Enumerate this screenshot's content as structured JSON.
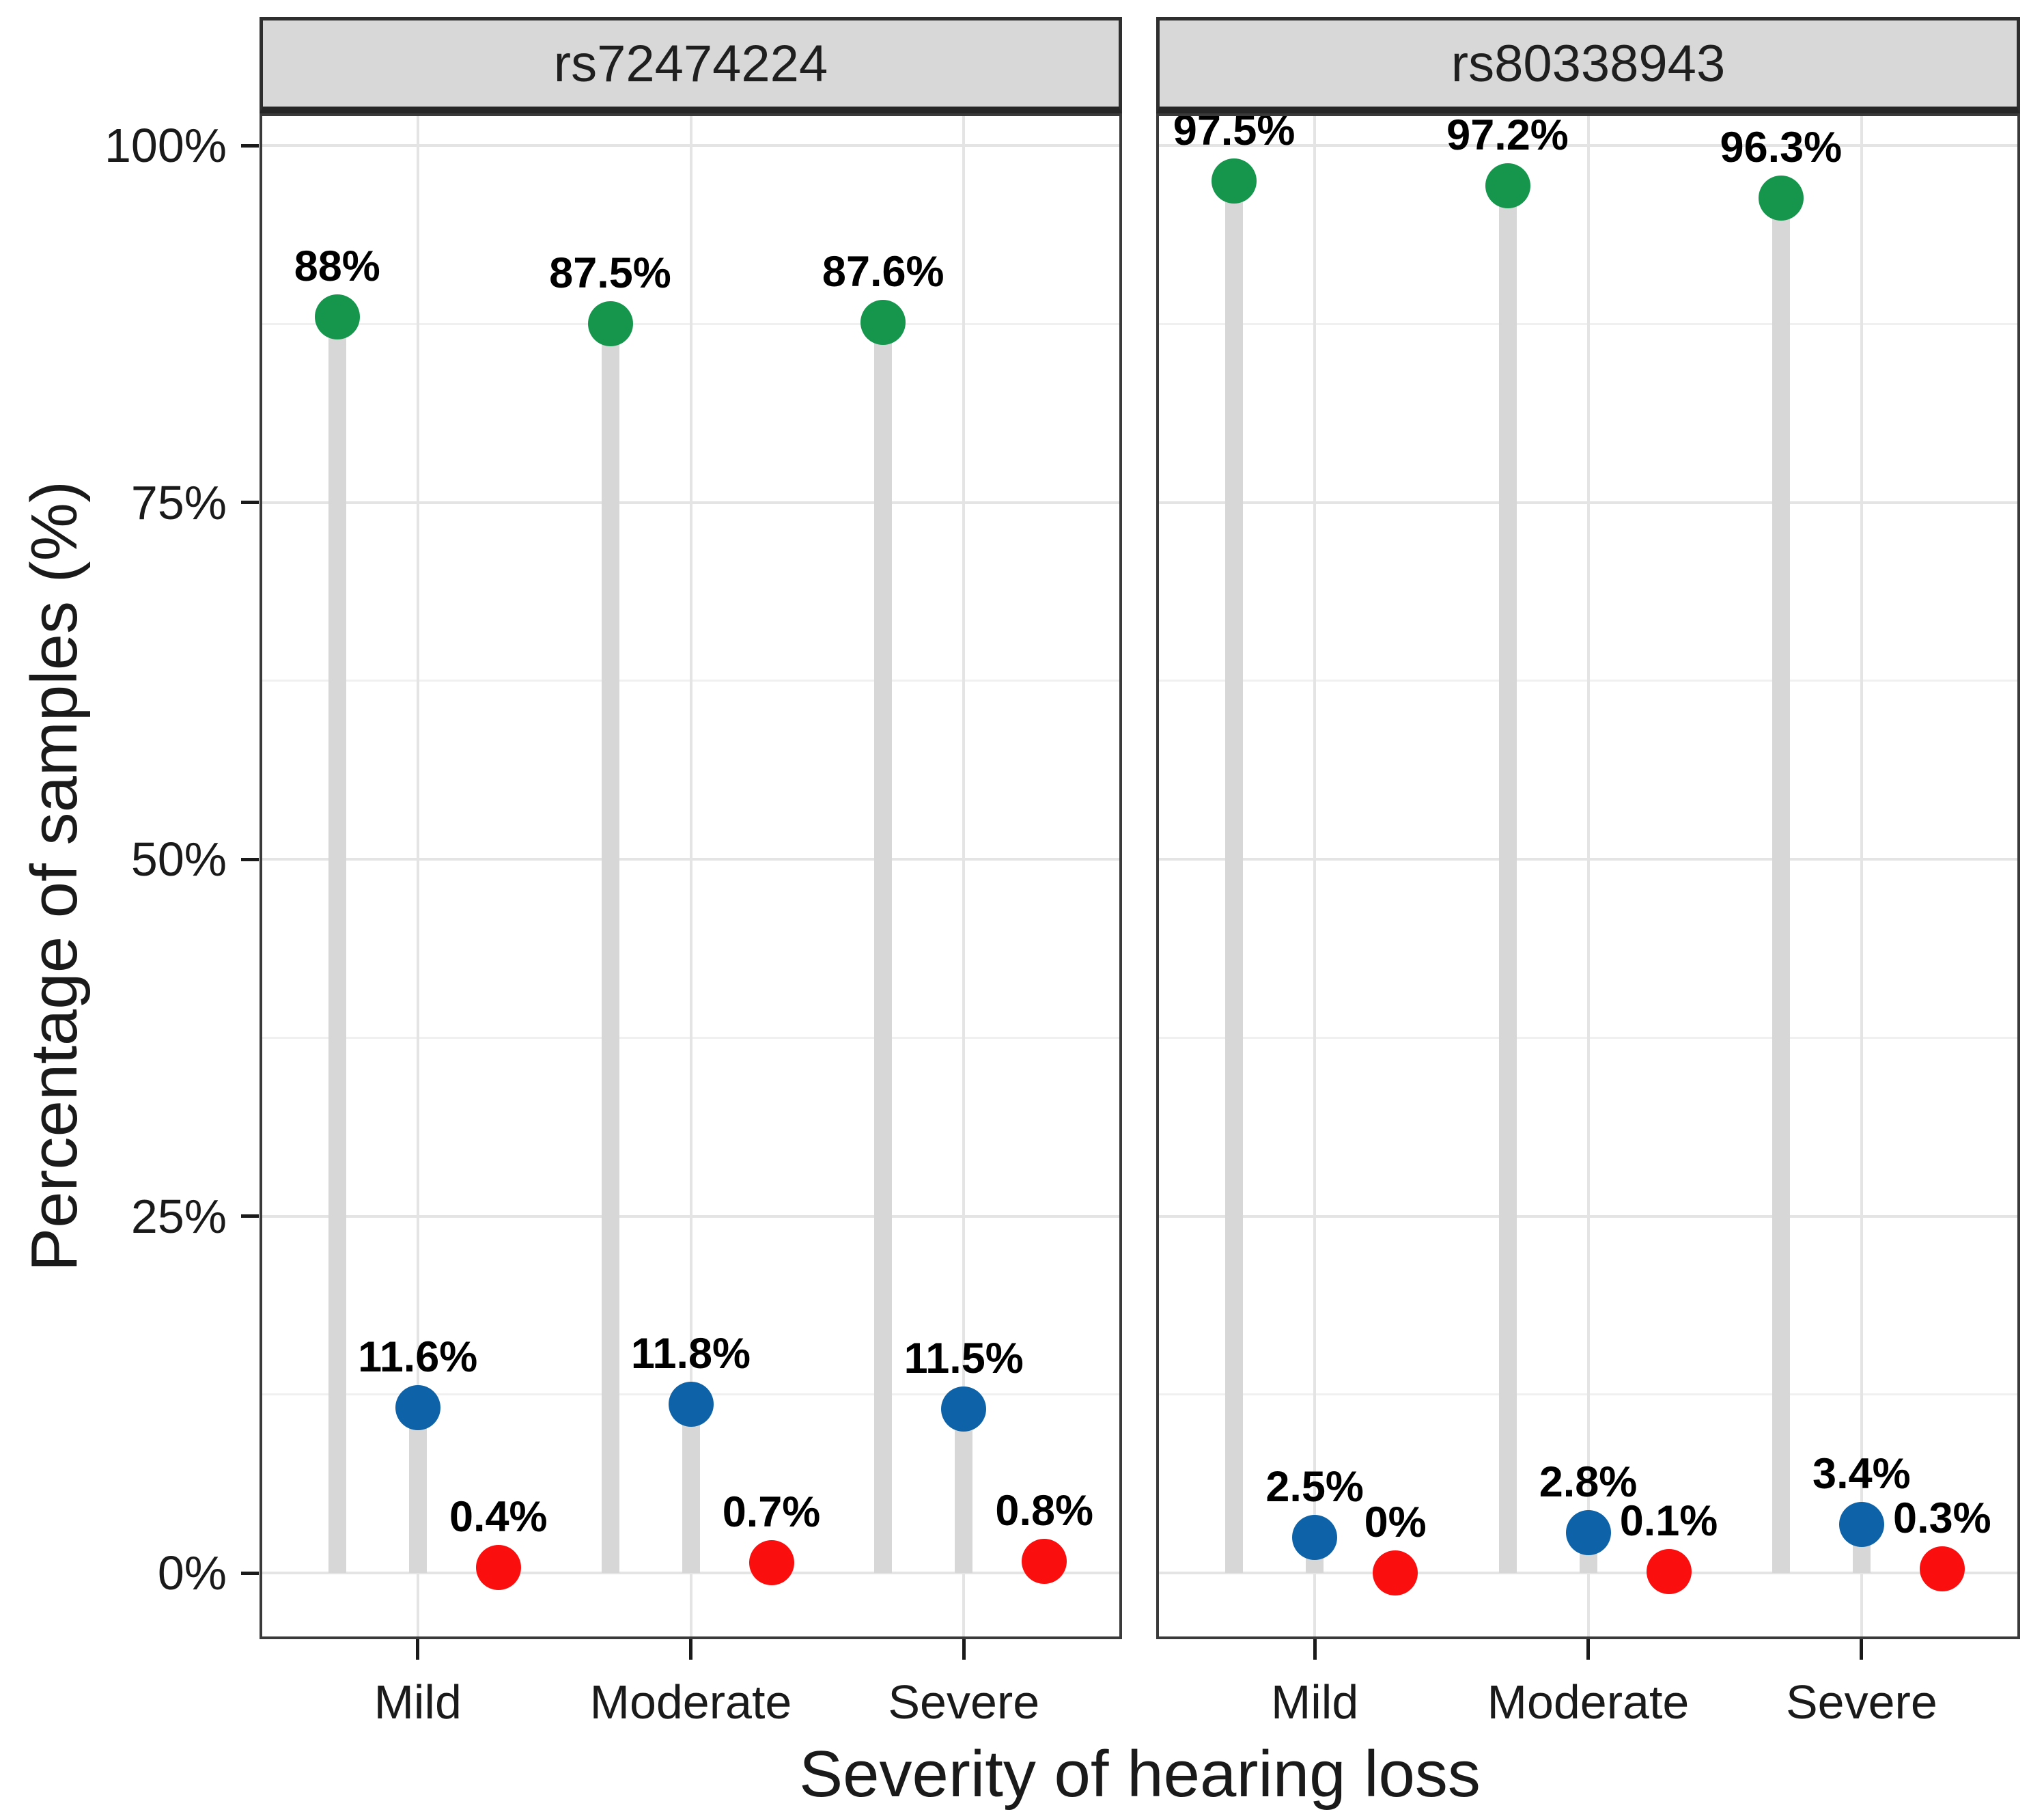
{
  "chart_data": {
    "type": "scatter",
    "variant": "dodged-lollipop",
    "xlabel": "Severity of hearing loss",
    "ylabel": "Percentage of samples (%)",
    "ylim": [
      0,
      100
    ],
    "y_major_ticks": [
      0,
      25,
      50,
      75,
      100
    ],
    "y_tick_labels": [
      "0%",
      "25%",
      "50%",
      "75%",
      "100%"
    ],
    "y_minor_ticks": [
      12.5,
      37.5,
      62.5,
      87.5
    ],
    "grid": true,
    "legend": "none",
    "facets": [
      {
        "label": "rs72474224",
        "categories": [
          "Mild",
          "Moderate",
          "Severe"
        ],
        "series": [
          {
            "name": "green-points",
            "color": "#16964d",
            "values": [
              88,
              87.5,
              87.6
            ],
            "point_labels": [
              "88%",
              "87.5%",
              "87.6%"
            ]
          },
          {
            "name": "blue-points",
            "color": "#0d62a8",
            "values": [
              11.6,
              11.8,
              11.5
            ],
            "point_labels": [
              "11.6%",
              "11.8%",
              "11.5%"
            ]
          },
          {
            "name": "red-points",
            "color": "#fb0e0e",
            "values": [
              0.4,
              0.7,
              0.8
            ],
            "point_labels": [
              "0.4%",
              "0.7%",
              "0.8%"
            ]
          }
        ]
      },
      {
        "label": "rs80338943",
        "categories": [
          "Mild",
          "Moderate",
          "Severe"
        ],
        "series": [
          {
            "name": "green-points",
            "color": "#16964d",
            "values": [
              97.5,
              97.2,
              96.3
            ],
            "point_labels": [
              "97.5%",
              "97.2%",
              "96.3%"
            ]
          },
          {
            "name": "blue-points",
            "color": "#0d62a8",
            "values": [
              2.5,
              2.8,
              3.4
            ],
            "point_labels": [
              "2.5%",
              "2.8%",
              "3.4%"
            ]
          },
          {
            "name": "red-points",
            "color": "#fb0e0e",
            "values": [
              0,
              0.1,
              0.3
            ],
            "point_labels": [
              "0%",
              "0.1%",
              "0.3%"
            ]
          }
        ]
      }
    ],
    "colors": {
      "stem": "#d7d7d7",
      "grid_major": "#e4e4e4",
      "grid_minor": "#f0f0f0",
      "strip_background": "#d8d8d8",
      "panel_border": "#3a3a3a",
      "axis_text": "#1a1a1a",
      "value_label_text": "#000000"
    }
  }
}
